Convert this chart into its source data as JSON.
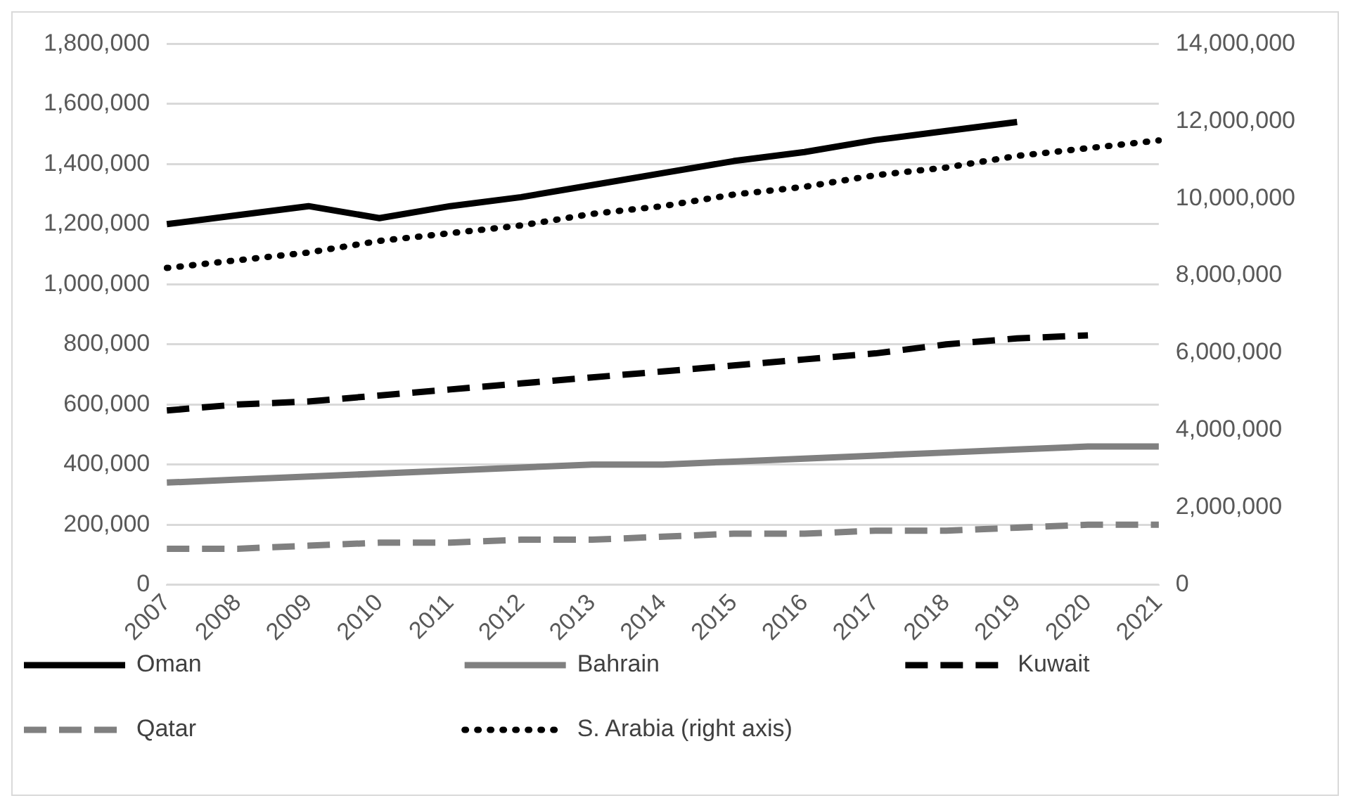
{
  "chart_data": {
    "type": "line",
    "categories": [
      "2007",
      "2008",
      "2009",
      "2010",
      "2011",
      "2012",
      "2013",
      "2014",
      "2015",
      "2016",
      "2017",
      "2018",
      "2019",
      "2020",
      "2021"
    ],
    "series": [
      {
        "name": "Oman",
        "color": "#000000",
        "line_style": "solid",
        "values": [
          1200000,
          1230000,
          1260000,
          1220000,
          1260000,
          1290000,
          1330000,
          1370000,
          1410000,
          1440000,
          1480000,
          1510000,
          1540000,
          null,
          null
        ]
      },
      {
        "name": "Bahrain",
        "color": "#808080",
        "line_style": "solid",
        "values": [
          340000,
          350000,
          360000,
          370000,
          380000,
          390000,
          400000,
          400000,
          410000,
          420000,
          430000,
          440000,
          450000,
          460000,
          460000
        ]
      },
      {
        "name": "Kuwait",
        "color": "#000000",
        "line_style": "dashed",
        "values": [
          580000,
          600000,
          610000,
          630000,
          650000,
          670000,
          690000,
          710000,
          730000,
          750000,
          770000,
          800000,
          820000,
          830000,
          null
        ]
      },
      {
        "name": "Qatar",
        "color": "#808080",
        "line_style": "dashed",
        "values": [
          120000,
          120000,
          130000,
          140000,
          140000,
          150000,
          150000,
          160000,
          170000,
          170000,
          180000,
          180000,
          190000,
          200000,
          200000
        ]
      },
      {
        "name": "S. Arabia (right axis)",
        "color": "#000000",
        "line_style": "dotted",
        "axis": "y2",
        "values": [
          8200000,
          8400000,
          8600000,
          8900000,
          9100000,
          9300000,
          9600000,
          9800000,
          10100000,
          10300000,
          10600000,
          10800000,
          11100000,
          11300000,
          11500000
        ]
      }
    ],
    "ylim": [
      0,
      1800000
    ],
    "yticks": [
      0,
      {
        "value": 200000,
        "label": "200,000"
      },
      {
        "value": 400000,
        "label": "400,000"
      },
      {
        "value": 600000,
        "label": "600,000"
      },
      {
        "value": 800000,
        "label": "800,000"
      },
      {
        "value": 1000000,
        "label": "1,000,000"
      },
      {
        "value": 1200000,
        "label": "1,200,000"
      },
      {
        "value": 1400000,
        "label": "1,400,000"
      },
      {
        "value": 1600000,
        "label": "1,600,000"
      },
      {
        "value": 1800000,
        "label": "1,800,000"
      }
    ],
    "y2lim": [
      0,
      14000000
    ],
    "y2ticks": [
      0,
      {
        "value": 2000000,
        "label": "2,000,000"
      },
      {
        "value": 4000000,
        "label": "4,000,000"
      },
      {
        "value": 6000000,
        "label": "6,000,000"
      },
      {
        "value": 8000000,
        "label": "8,000,000"
      },
      {
        "value": 10000000,
        "label": "10,000,000"
      },
      {
        "value": 12000000,
        "label": "12,000,000"
      },
      {
        "value": 14000000,
        "label": "14,000,000"
      }
    ],
    "grid": "y",
    "legend": "bottom",
    "marker": "none"
  }
}
